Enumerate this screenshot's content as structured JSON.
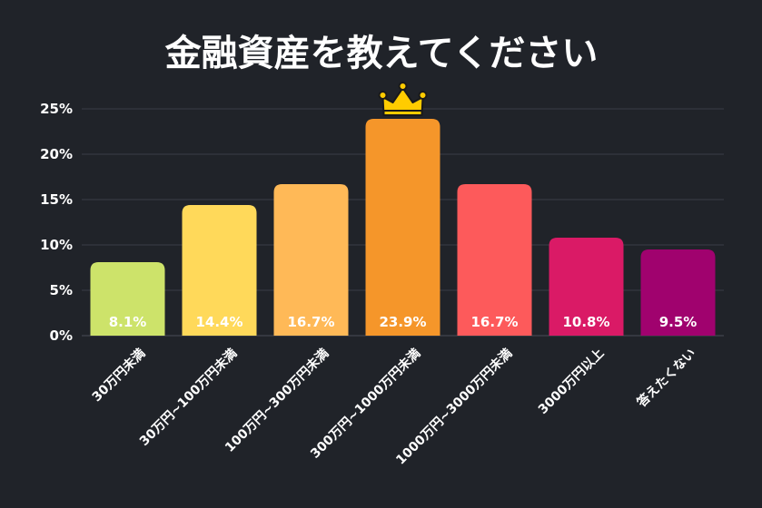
{
  "chart_data": {
    "type": "bar",
    "title": "金融資産を教えてください",
    "xlabel": "",
    "ylabel": "",
    "categories": [
      "30万円未満",
      "30万円~100万円未満",
      "100万円~300万円未満",
      "300万円~1000万円未満",
      "1000万円~3000万円未満",
      "3000万円以上",
      "答えたくない"
    ],
    "values": [
      8.1,
      14.4,
      16.7,
      23.9,
      16.7,
      10.8,
      9.5
    ],
    "data_labels": [
      "8.1%",
      "14.4%",
      "16.7%",
      "23.9%",
      "16.7%",
      "10.8%",
      "9.5%"
    ],
    "colors": [
      "#cde36a",
      "#ffd95a",
      "#ffb957",
      "#f5962a",
      "#fd5a5b",
      "#da1a66",
      "#a0026e"
    ],
    "ylim": [
      0,
      25
    ],
    "yticks": [
      0,
      5,
      10,
      15,
      20,
      25
    ],
    "ytick_labels": [
      "0%",
      "5%",
      "10%",
      "15%",
      "20%",
      "25%"
    ],
    "grid": true,
    "highlight": {
      "index": 3,
      "icon": "crown-icon",
      "color": "#ffcc00"
    }
  }
}
